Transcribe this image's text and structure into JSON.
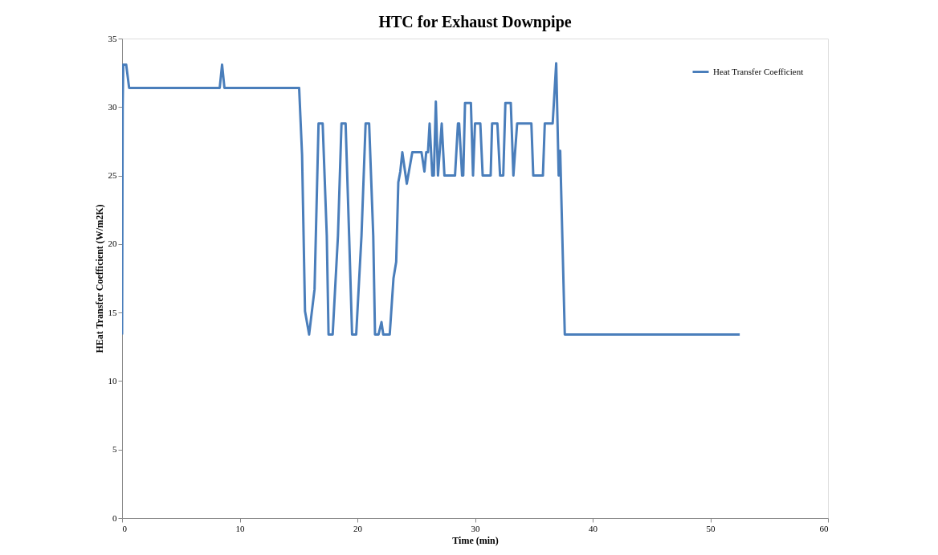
{
  "chart_data": {
    "type": "line",
    "title": "HTC for Exhaust Downpipe",
    "xlabel": "Time (min)",
    "ylabel": "HEat Transfer Coefficient (W/m2K)",
    "xlim": [
      0,
      60
    ],
    "xticks": [
      0,
      10,
      20,
      30,
      40,
      50,
      60
    ],
    "ylim": [
      0,
      35
    ],
    "yticks": [
      0,
      5,
      10,
      15,
      20,
      25,
      30,
      35
    ],
    "grid": false,
    "legend": "top right",
    "marker": "none",
    "line_style": "solid",
    "series": [
      {
        "name": "Heat Transfer Coefficient",
        "color": "#4a7ebb",
        "x": [
          0,
          0.05,
          0.1,
          0.35,
          0.6,
          8.3,
          8.5,
          8.7,
          15.05,
          15.3,
          15.55,
          15.9,
          16.36,
          16.7,
          17.05,
          17.4,
          17.55,
          17.9,
          18.35,
          18.65,
          19.0,
          19.3,
          19.55,
          19.9,
          20.35,
          20.7,
          21.0,
          21.35,
          21.5,
          21.8,
          22.05,
          22.2,
          22.75,
          23.07,
          23.3,
          23.48,
          23.65,
          23.82,
          24.2,
          24.67,
          25.45,
          25.7,
          25.85,
          26.0,
          26.14,
          26.37,
          26.5,
          26.67,
          26.85,
          27.17,
          27.4,
          28.3,
          28.55,
          28.65,
          28.9,
          29.0,
          29.15,
          29.65,
          29.83,
          30.0,
          30.45,
          30.65,
          31.33,
          31.45,
          31.9,
          32.13,
          32.4,
          32.58,
          33.04,
          33.26,
          33.58,
          34.79,
          34.95,
          35.77,
          35.93,
          36.6,
          36.9,
          37.11,
          37.24,
          37.36,
          37.63,
          52.5
        ],
        "values": [
          13.4,
          30.0,
          33.1,
          33.1,
          31.4,
          31.4,
          33.1,
          31.4,
          31.4,
          26.5,
          15.1,
          13.4,
          16.7,
          28.8,
          28.8,
          20.6,
          13.4,
          13.4,
          20.6,
          28.8,
          28.8,
          20.6,
          13.4,
          13.4,
          20.6,
          28.8,
          28.8,
          20.6,
          13.4,
          13.4,
          14.3,
          13.4,
          13.4,
          17.5,
          18.7,
          24.5,
          25.3,
          26.7,
          24.4,
          26.7,
          26.7,
          25.3,
          26.7,
          26.7,
          28.8,
          25.0,
          25.0,
          30.4,
          25.0,
          28.8,
          25.0,
          25.0,
          28.8,
          28.8,
          25.0,
          25.0,
          30.3,
          30.3,
          25.0,
          28.8,
          28.8,
          25.0,
          25.0,
          28.8,
          28.8,
          25.0,
          25.0,
          30.3,
          30.3,
          25.0,
          28.8,
          28.8,
          25.0,
          25.0,
          28.8,
          28.8,
          33.2,
          25.0,
          26.8,
          22.6,
          13.4,
          13.4
        ]
      }
    ]
  }
}
